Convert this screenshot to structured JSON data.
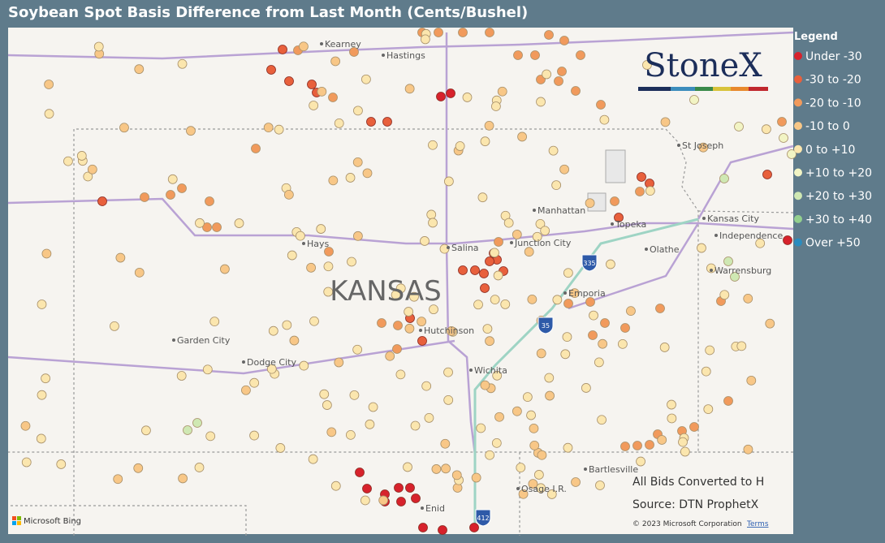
{
  "title": "Soybean Spot Basis Difference from Last Month (Cents/Bushel)",
  "legend": {
    "title": "Legend",
    "items": [
      {
        "label": "Under -30",
        "color": "#d7222c"
      },
      {
        "label": "-30 to -20",
        "color": "#e8603c"
      },
      {
        "label": "-20 to -10",
        "color": "#f19a5c"
      },
      {
        "label": "-10 to 0",
        "color": "#f8c787"
      },
      {
        "label": "0 to +10",
        "color": "#fbe6ae"
      },
      {
        "label": "+10 to +20",
        "color": "#f2f4c4"
      },
      {
        "label": "+20 to +30",
        "color": "#cfe8b3"
      },
      {
        "label": "+30 to +40",
        "color": "#93cf8e"
      },
      {
        "label": "Over +50",
        "color": "#2b8cbe"
      }
    ]
  },
  "map_labels": {
    "state": "KANSAS",
    "cities": [
      "Kearney",
      "Hastings",
      "Hays",
      "Salina",
      "Junction City",
      "Manhattan",
      "Topeka",
      "Kansas City",
      "Independence",
      "Olathe",
      "Warrensburg",
      "Emporia",
      "Hutchinson",
      "Wichita",
      "Garden City",
      "Dodge City",
      "St Joseph",
      "Bartlesville",
      "Osage I.R.",
      "Enid"
    ]
  },
  "highways": [
    "335",
    "35",
    "412"
  ],
  "logo": "StoneX",
  "notes": [
    "All Bids Converted to H",
    "Source: DTN ProphetX"
  ],
  "attribution": {
    "provider": "Microsoft Bing",
    "copyright": "© 2023 Microsoft Corporation",
    "terms": "Terms"
  }
}
